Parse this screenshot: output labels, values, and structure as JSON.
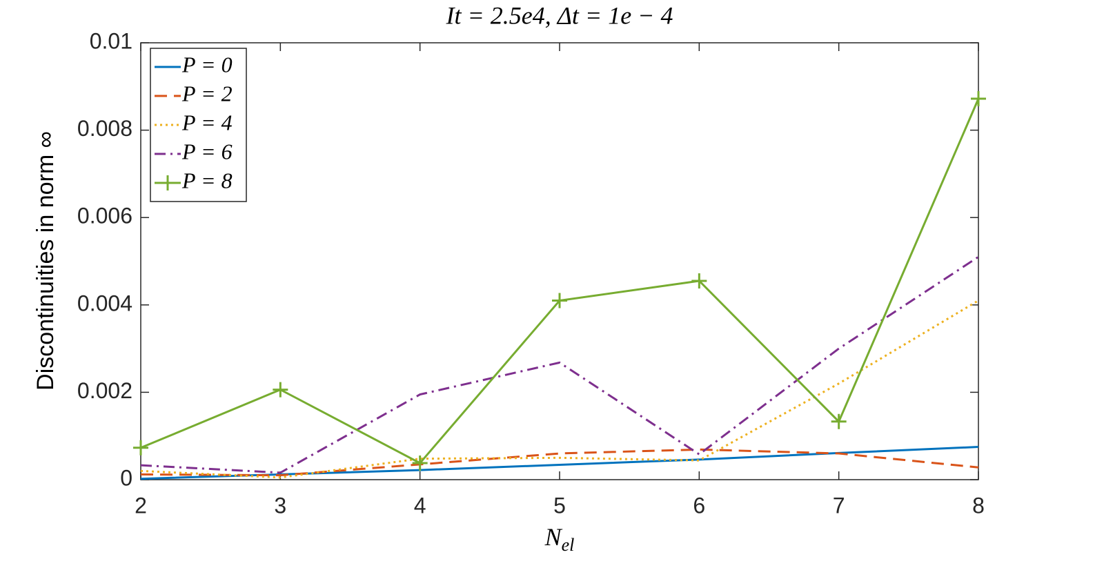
{
  "chart_data": {
    "type": "line",
    "title": "It = 2.5e4, Δt = 1e − 4",
    "xlabel": {
      "base": "N",
      "sub": "el"
    },
    "ylabel": "Discontinuities in norm ∞",
    "x": [
      2,
      3,
      4,
      5,
      6,
      7,
      8
    ],
    "xlim": [
      2,
      8
    ],
    "xticks": [
      2,
      3,
      4,
      5,
      6,
      7,
      8
    ],
    "ylim": [
      0,
      0.01
    ],
    "yticks": [
      0,
      0.002,
      0.004,
      0.006,
      0.008,
      0.01
    ],
    "legend": "upper left",
    "series": [
      {
        "name": "P = 0",
        "color": "#0072bd",
        "dash": "solid",
        "marker": "none",
        "values": [
          2e-05,
          0.00012,
          0.00022,
          0.00034,
          0.00046,
          0.00061,
          0.00075
        ]
      },
      {
        "name": "P = 2",
        "color": "#d95319",
        "dash": "dashed",
        "marker": "none",
        "values": [
          0.00012,
          0.0001,
          0.00035,
          0.0006,
          0.00069,
          0.0006,
          0.00028
        ]
      },
      {
        "name": "P = 4",
        "color": "#edb120",
        "dash": "dotted",
        "marker": "none",
        "values": [
          0.0002,
          5e-05,
          0.00048,
          0.0005,
          0.00044,
          0.0022,
          0.0041
        ]
      },
      {
        "name": "P = 6",
        "color": "#7e2f8e",
        "dash": "dashdot",
        "marker": "none",
        "values": [
          0.00033,
          0.00016,
          0.00195,
          0.00268,
          0.00058,
          0.003,
          0.0051
        ]
      },
      {
        "name": "P = 8",
        "color": "#77ac30",
        "dash": "solid",
        "marker": "plus",
        "values": [
          0.00073,
          0.00206,
          0.00038,
          0.0041,
          0.00455,
          0.00133,
          0.00872
        ]
      }
    ]
  }
}
